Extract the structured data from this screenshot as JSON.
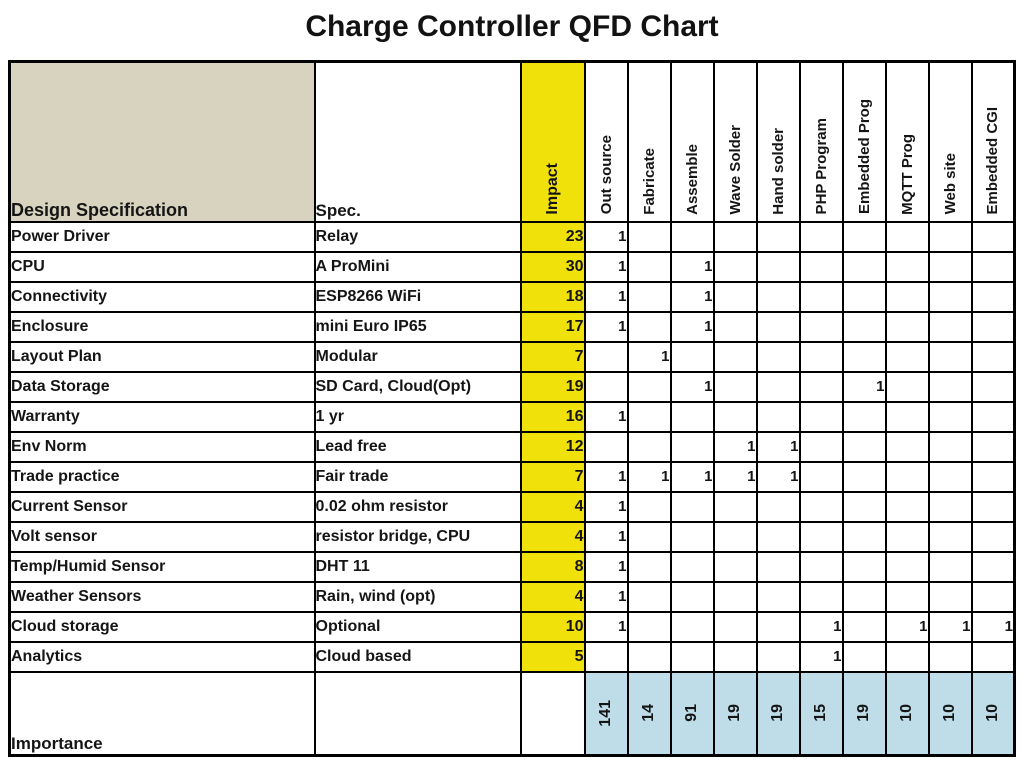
{
  "title": "Charge Controller QFD Chart",
  "chart_data": {
    "type": "table",
    "title": "Charge Controller QFD Chart",
    "row_header_label": "Design Specification",
    "spec_header_label": "Spec.",
    "impact_header_label": "Impact",
    "process_columns": [
      "Out source",
      "Fabricate",
      "Assemble",
      "Wave Solder",
      "Hand solder",
      "PHP Program",
      "Embedded Prog",
      "MQTT Prog",
      "Web site",
      "Embedded CGI"
    ],
    "rows": [
      {
        "name": "Power Driver",
        "spec": "Relay",
        "impact": "23",
        "marks": [
          "1",
          "",
          "",
          "",
          "",
          "",
          "",
          "",
          "",
          ""
        ]
      },
      {
        "name": "CPU",
        "spec": "A ProMini",
        "impact": "30",
        "marks": [
          "1",
          "",
          "1",
          "",
          "",
          "",
          "",
          "",
          "",
          ""
        ]
      },
      {
        "name": "Connectivity",
        "spec": "ESP8266 WiFi",
        "impact": "18",
        "marks": [
          "1",
          "",
          "1",
          "",
          "",
          "",
          "",
          "",
          "",
          ""
        ]
      },
      {
        "name": "Enclosure",
        "spec": "mini Euro IP65",
        "impact": "17",
        "marks": [
          "1",
          "",
          "1",
          "",
          "",
          "",
          "",
          "",
          "",
          ""
        ]
      },
      {
        "name": "Layout Plan",
        "spec": "Modular",
        "impact": "7",
        "marks": [
          "",
          "1",
          "",
          "",
          "",
          "",
          "",
          "",
          "",
          ""
        ]
      },
      {
        "name": "Data Storage",
        "spec": "SD Card, Cloud(Opt)",
        "impact": "19",
        "marks": [
          "",
          "",
          "1",
          "",
          "",
          "",
          "1",
          "",
          "",
          ""
        ]
      },
      {
        "name": "Warranty",
        "spec": "1 yr",
        "impact": "16",
        "marks": [
          "1",
          "",
          "",
          "",
          "",
          "",
          "",
          "",
          "",
          ""
        ]
      },
      {
        "name": "Env Norm",
        "spec": "Lead free",
        "impact": "12",
        "marks": [
          "",
          "",
          "",
          "1",
          "1",
          "",
          "",
          "",
          "",
          ""
        ]
      },
      {
        "name": "Trade practice",
        "spec": "Fair trade",
        "impact": "7",
        "marks": [
          "1",
          "1",
          "1",
          "1",
          "1",
          "",
          "",
          "",
          "",
          ""
        ]
      },
      {
        "name": "Current Sensor",
        "spec": "0.02 ohm resistor",
        "impact": "4",
        "marks": [
          "1",
          "",
          "",
          "",
          "",
          "",
          "",
          "",
          "",
          ""
        ]
      },
      {
        "name": "Volt sensor",
        "spec": "resistor bridge, CPU",
        "impact": "4",
        "marks": [
          "1",
          "",
          "",
          "",
          "",
          "",
          "",
          "",
          "",
          ""
        ]
      },
      {
        "name": "Temp/Humid Sensor",
        "spec": "DHT 11",
        "impact": "8",
        "marks": [
          "1",
          "",
          "",
          "",
          "",
          "",
          "",
          "",
          "",
          ""
        ]
      },
      {
        "name": "Weather Sensors",
        "spec": "Rain, wind (opt)",
        "impact": "4",
        "marks": [
          "1",
          "",
          "",
          "",
          "",
          "",
          "",
          "",
          "",
          ""
        ]
      },
      {
        "name": "Cloud storage",
        "spec": "Optional",
        "impact": "10",
        "marks": [
          "1",
          "",
          "",
          "",
          "",
          "1",
          "",
          "1",
          "1",
          "1"
        ]
      },
      {
        "name": "Analytics",
        "spec": "Cloud based",
        "impact": "5",
        "marks": [
          "",
          "",
          "",
          "",
          "",
          "1",
          "",
          "",
          "",
          ""
        ]
      }
    ],
    "importance_label": "Importance",
    "importance": [
      "141",
      "14",
      "91",
      "19",
      "19",
      "15",
      "19",
      "10",
      "10",
      "10"
    ]
  },
  "colors": {
    "impact_column": "#F0E10A",
    "design_spec_header": "#D7D3BE",
    "importance_cells": "#BEDDE9",
    "border": "#000000",
    "background": "#FFFFFF"
  }
}
